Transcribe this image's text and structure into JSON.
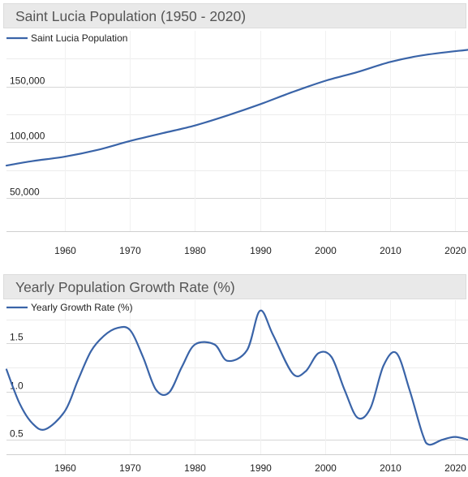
{
  "panels": [
    {
      "title": "Saint Lucia Population (1950 - 2020)"
    },
    {
      "title": "Yearly Population Growth Rate (%)"
    }
  ],
  "colors": {
    "line": "#3a64a8",
    "grid": "#d6d6d6",
    "header_bg": "#e9e9e9"
  },
  "chart_data": [
    {
      "type": "line",
      "title": "Saint Lucia Population (1950 - 2020)",
      "xlabel": "",
      "ylabel": "",
      "xlim": [
        1951,
        2022
      ],
      "ylim": [
        20000,
        200000
      ],
      "x_ticks": [
        1960,
        1970,
        1980,
        1990,
        2000,
        2010,
        2020
      ],
      "y_ticks": [
        50000,
        100000,
        150000
      ],
      "y_tick_labels": [
        "50,000",
        "100,000",
        "150,000"
      ],
      "grid": true,
      "legend_position": "top-left",
      "series": [
        {
          "name": "Saint Lucia Population",
          "x": [
            1951,
            1955,
            1960,
            1965,
            1970,
            1975,
            1980,
            1985,
            1990,
            1995,
            2000,
            2005,
            2010,
            2015,
            2022
          ],
          "y": [
            79000,
            83000,
            87000,
            93000,
            101000,
            108000,
            115000,
            124000,
            134000,
            145000,
            155000,
            163000,
            172000,
            178000,
            183000
          ]
        }
      ]
    },
    {
      "type": "line",
      "title": "Yearly Population Growth Rate (%)",
      "xlabel": "",
      "ylabel": "",
      "xlim": [
        1951,
        2022
      ],
      "ylim": [
        0.35,
        1.95
      ],
      "x_ticks": [
        1960,
        1970,
        1980,
        1990,
        2000,
        2010,
        2020
      ],
      "y_ticks": [
        0.5,
        1.0,
        1.5
      ],
      "y_tick_labels": [
        "0.5",
        "1.0",
        "1.5"
      ],
      "grid": true,
      "legend_position": "top-left",
      "series": [
        {
          "name": "Yearly Growth Rate (%)",
          "x": [
            1951,
            1953,
            1955,
            1957,
            1960,
            1962,
            1964,
            1966,
            1968,
            1970,
            1972,
            1974,
            1976,
            1978,
            1980,
            1983,
            1985,
            1988,
            1990,
            1992,
            1995,
            1997,
            1999,
            2001,
            2003,
            2005,
            2007,
            2009,
            2011,
            2013,
            2015,
            2016,
            2018,
            2020,
            2022
          ],
          "y": [
            1.23,
            0.88,
            0.67,
            0.61,
            0.8,
            1.12,
            1.42,
            1.58,
            1.66,
            1.64,
            1.36,
            1.02,
            0.99,
            1.26,
            1.49,
            1.49,
            1.32,
            1.43,
            1.84,
            1.59,
            1.19,
            1.21,
            1.4,
            1.36,
            1.02,
            0.73,
            0.83,
            1.27,
            1.4,
            1.02,
            0.56,
            0.45,
            0.5,
            0.53,
            0.5
          ]
        }
      ]
    }
  ]
}
